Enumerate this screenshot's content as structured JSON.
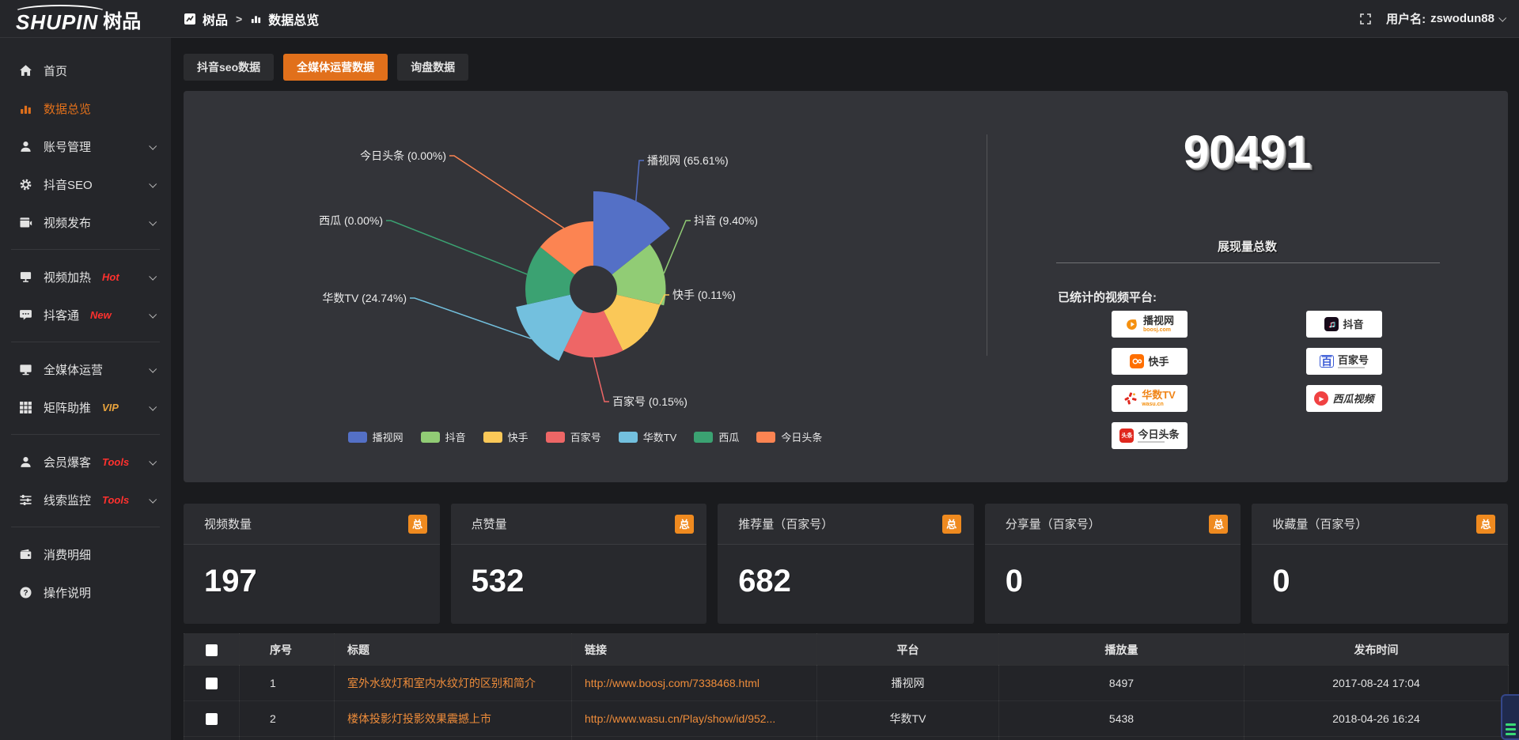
{
  "theme": {
    "accent": "#e1701b",
    "badge_orange": "#ef8a1f",
    "link_orange": "#ee8c3a",
    "hot_red": "#ff312e",
    "vip_gold": "#e8a33d"
  },
  "topbar": {
    "logo": {
      "en": "SHUPIN",
      "cn": "树品"
    },
    "breadcrumb": {
      "root": "树品",
      "separator": ">",
      "current": "数据总览"
    },
    "username_prefix": "用户名:",
    "username": "zswodun88"
  },
  "sidebar": {
    "items": [
      {
        "key": "home",
        "label": "首页",
        "icon": "home"
      },
      {
        "key": "data-overview",
        "label": "数据总览",
        "icon": "chart",
        "active": true
      },
      {
        "key": "account-manage",
        "label": "账号管理",
        "icon": "user",
        "expandable": true
      },
      {
        "key": "douyin-seo",
        "label": "抖音SEO",
        "icon": "gear",
        "expandable": true
      },
      {
        "key": "video-publish",
        "label": "视频发布",
        "icon": "video",
        "expandable": true,
        "divider_after": true
      },
      {
        "key": "video-heat",
        "label": "视频加热",
        "icon": "heat",
        "badge": "Hot",
        "badge_color": "#ff312e",
        "expandable": true
      },
      {
        "key": "douketong",
        "label": "抖客通",
        "icon": "chat",
        "badge": "New",
        "badge_color": "#ff312e",
        "expandable": true,
        "divider_after": true
      },
      {
        "key": "omni-media",
        "label": "全媒体运营",
        "icon": "monitor",
        "expandable": true
      },
      {
        "key": "matrix-boost",
        "label": "矩阵助推",
        "icon": "grid",
        "badge": "VIP",
        "badge_color": "#e8a33d",
        "expandable": true,
        "divider_after": true
      },
      {
        "key": "member-burst",
        "label": "会员爆客",
        "icon": "users",
        "badge": "Tools",
        "badge_color": "#ff312e",
        "expandable": true
      },
      {
        "key": "lead-monitor",
        "label": "线索监控",
        "icon": "sliders",
        "badge": "Tools",
        "badge_color": "#ff312e",
        "expandable": true,
        "divider_after": true
      },
      {
        "key": "spend-detail",
        "label": "消费明细",
        "icon": "wallet"
      },
      {
        "key": "help",
        "label": "操作说明",
        "icon": "question"
      }
    ]
  },
  "tabs": [
    {
      "key": "douyin-seo",
      "label": "抖音seo数据",
      "active": false
    },
    {
      "key": "omni-media",
      "label": "全媒体运营数据",
      "active": true
    },
    {
      "key": "inquiry",
      "label": "询盘数据",
      "active": false
    }
  ],
  "chart_data": {
    "type": "pie",
    "variant": "nightingale-rose",
    "unit": "%",
    "label_format": "{name} ({value}%)",
    "legend_position": "bottom",
    "items": [
      {
        "name": "播视网",
        "value": 65.61,
        "color": "#5470c6"
      },
      {
        "name": "抖音",
        "value": 9.4,
        "color": "#91cc75"
      },
      {
        "name": "快手",
        "value": 0.11,
        "color": "#fac858"
      },
      {
        "name": "百家号",
        "value": 0.15,
        "color": "#ee6666"
      },
      {
        "name": "华数TV",
        "value": 24.74,
        "color": "#73c0de"
      },
      {
        "name": "西瓜",
        "value": 0.0,
        "color": "#3ba272"
      },
      {
        "name": "今日头条",
        "value": 0.0,
        "color": "#fc8452"
      }
    ]
  },
  "summary": {
    "total_value": "90491",
    "total_label": "展现量总数",
    "platforms_title": "已统计的视频平台:",
    "platform_columns": [
      [
        {
          "name": "播视网",
          "sub": "boosj.com",
          "icon": "boosj"
        },
        {
          "name": "快手",
          "icon": "kuaishou"
        },
        {
          "name": "华数TV",
          "sub": "wasu.cn",
          "icon": "wasu"
        },
        {
          "name": "今日头条",
          "icon": "toutiao"
        }
      ],
      [
        {
          "name": "抖音",
          "icon": "douyin"
        },
        {
          "name": "百家号",
          "icon": "baijiahao"
        },
        {
          "name": "西瓜视频",
          "icon": "xigua"
        }
      ]
    ]
  },
  "stat_cards": [
    {
      "key": "video-count",
      "title": "视频数量",
      "badge": "总",
      "value": "197"
    },
    {
      "key": "likes",
      "title": "点赞量",
      "badge": "总",
      "value": "532"
    },
    {
      "key": "recommends",
      "title": "推荐量（百家号）",
      "badge": "总",
      "value": "682"
    },
    {
      "key": "shares",
      "title": "分享量（百家号）",
      "badge": "总",
      "value": "0"
    },
    {
      "key": "favorites",
      "title": "收藏量（百家号）",
      "badge": "总",
      "value": "0"
    }
  ],
  "table": {
    "columns": [
      "",
      "序号",
      "标题",
      "链接",
      "平台",
      "播放量",
      "发布时间"
    ],
    "rows": [
      {
        "no": "1",
        "title": "室外水纹灯和室内水纹灯的区别和简介",
        "link": "http://www.boosj.com/7338468.html",
        "platform": "播视网",
        "views": "8497",
        "time": "2017-08-24 17:04"
      },
      {
        "no": "2",
        "title": "楼体投影灯投影效果震撼上市",
        "link": "http://www.wasu.cn/Play/show/id/952...",
        "platform": "华数TV",
        "views": "5438",
        "time": "2018-04-26 16:24"
      }
    ]
  }
}
